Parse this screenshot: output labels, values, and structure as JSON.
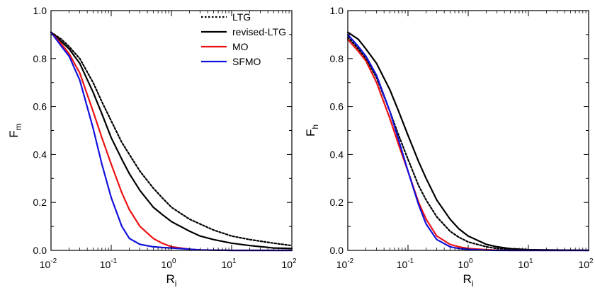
{
  "chart_data": [
    {
      "type": "line",
      "xscale": "log",
      "xlim": [
        0.01,
        100
      ],
      "ylim": [
        0,
        1
      ],
      "xticks": [
        0.01,
        0.1,
        1,
        10,
        100
      ],
      "xtick_labels": [
        [
          "10",
          "-2"
        ],
        [
          "10",
          "-1"
        ],
        [
          "10",
          "0"
        ],
        [
          "10",
          "1"
        ],
        [
          "10",
          "2"
        ]
      ],
      "yticks": [
        0,
        0.2,
        0.4,
        0.6,
        0.8,
        1.0
      ],
      "ytick_labels": [
        "0.0",
        "0.2",
        "0.4",
        "0.6",
        "0.8",
        "1.0"
      ],
      "xlabel": {
        "main": "R",
        "sub": "i"
      },
      "ylabel": {
        "main": "F",
        "sub": "m"
      },
      "legend": {
        "position": "top-right",
        "entries": [
          {
            "label": "LTG",
            "color": "#000000",
            "dash": "dotted"
          },
          {
            "label": "revised-LTG",
            "color": "#000000",
            "dash": "solid"
          },
          {
            "label": "MO",
            "color": "#ee1111",
            "dash": "solid"
          },
          {
            "label": "SFMO",
            "color": "#1111dd",
            "dash": "solid"
          }
        ]
      },
      "series": [
        {
          "name": "LTG",
          "color": "#000000",
          "dash": "dotted",
          "x": [
            0.01,
            0.015,
            0.02,
            0.03,
            0.05,
            0.07,
            0.1,
            0.15,
            0.2,
            0.3,
            0.5,
            0.7,
            1,
            2,
            3,
            5,
            10,
            20,
            50,
            100
          ],
          "y": [
            0.91,
            0.88,
            0.85,
            0.8,
            0.7,
            0.62,
            0.54,
            0.45,
            0.4,
            0.33,
            0.26,
            0.22,
            0.18,
            0.13,
            0.11,
            0.085,
            0.06,
            0.045,
            0.03,
            0.02
          ]
        },
        {
          "name": "revised-LTG",
          "color": "#000000",
          "dash": "solid",
          "x": [
            0.01,
            0.015,
            0.02,
            0.03,
            0.05,
            0.07,
            0.1,
            0.15,
            0.2,
            0.3,
            0.5,
            0.7,
            1,
            2,
            3,
            5,
            10,
            20,
            50,
            100
          ],
          "y": [
            0.91,
            0.87,
            0.84,
            0.78,
            0.66,
            0.57,
            0.47,
            0.38,
            0.32,
            0.25,
            0.18,
            0.15,
            0.12,
            0.08,
            0.06,
            0.045,
            0.03,
            0.02,
            0.01,
            0.008
          ]
        },
        {
          "name": "MO",
          "color": "#ee1111",
          "dash": "solid",
          "x": [
            0.01,
            0.015,
            0.02,
            0.03,
            0.05,
            0.07,
            0.1,
            0.15,
            0.2,
            0.3,
            0.5,
            0.7,
            1,
            2,
            3,
            5,
            10,
            100
          ],
          "y": [
            0.91,
            0.86,
            0.82,
            0.74,
            0.58,
            0.47,
            0.36,
            0.24,
            0.17,
            0.1,
            0.05,
            0.03,
            0.015,
            0.005,
            0.002,
            0.001,
            0.0,
            0.0
          ]
        },
        {
          "name": "SFMO",
          "color": "#1111dd",
          "dash": "solid",
          "x": [
            0.01,
            0.015,
            0.02,
            0.03,
            0.05,
            0.07,
            0.1,
            0.15,
            0.2,
            0.3,
            0.5,
            0.7,
            1,
            2,
            3,
            5,
            10,
            100
          ],
          "y": [
            0.91,
            0.85,
            0.81,
            0.71,
            0.51,
            0.36,
            0.22,
            0.1,
            0.05,
            0.025,
            0.015,
            0.012,
            0.01,
            0.005,
            0.002,
            0.001,
            0.0,
            0.0
          ]
        }
      ]
    },
    {
      "type": "line",
      "xscale": "log",
      "xlim": [
        0.01,
        100
      ],
      "ylim": [
        0,
        1
      ],
      "xticks": [
        0.01,
        0.1,
        1,
        10,
        100
      ],
      "xtick_labels": [
        [
          "10",
          "-2"
        ],
        [
          "10",
          "-1"
        ],
        [
          "10",
          "0"
        ],
        [
          "10",
          "1"
        ],
        [
          "10",
          "2"
        ]
      ],
      "yticks": [
        0,
        0.2,
        0.4,
        0.6,
        0.8,
        1.0
      ],
      "ytick_labels": [
        "0.0",
        "0.2",
        "0.4",
        "0.6",
        "0.8",
        "1.0"
      ],
      "xlabel": {
        "main": "R",
        "sub": "i"
      },
      "ylabel": {
        "main": "F",
        "sub": "h"
      },
      "series": [
        {
          "name": "LTG",
          "color": "#000000",
          "dash": "dotted",
          "x": [
            0.01,
            0.015,
            0.02,
            0.03,
            0.05,
            0.07,
            0.1,
            0.15,
            0.2,
            0.3,
            0.5,
            0.7,
            1,
            2,
            3,
            5,
            10,
            100
          ],
          "y": [
            0.89,
            0.84,
            0.8,
            0.72,
            0.58,
            0.48,
            0.38,
            0.27,
            0.21,
            0.14,
            0.08,
            0.055,
            0.035,
            0.015,
            0.008,
            0.004,
            0.002,
            0.0
          ]
        },
        {
          "name": "revised-LTG",
          "color": "#000000",
          "dash": "solid",
          "x": [
            0.01,
            0.015,
            0.02,
            0.03,
            0.05,
            0.07,
            0.1,
            0.15,
            0.2,
            0.3,
            0.5,
            0.7,
            1,
            2,
            3,
            5,
            10,
            100
          ],
          "y": [
            0.91,
            0.88,
            0.84,
            0.78,
            0.67,
            0.58,
            0.48,
            0.37,
            0.3,
            0.21,
            0.13,
            0.09,
            0.06,
            0.025,
            0.015,
            0.007,
            0.003,
            0.0
          ]
        },
        {
          "name": "MO",
          "color": "#ee1111",
          "dash": "solid",
          "x": [
            0.01,
            0.015,
            0.02,
            0.03,
            0.05,
            0.07,
            0.1,
            0.15,
            0.2,
            0.3,
            0.5,
            0.7,
            1,
            2,
            3,
            5,
            10,
            100
          ],
          "y": [
            0.88,
            0.83,
            0.79,
            0.7,
            0.55,
            0.44,
            0.33,
            0.2,
            0.13,
            0.06,
            0.025,
            0.015,
            0.008,
            0.003,
            0.001,
            0.0,
            0.0,
            0.0
          ]
        },
        {
          "name": "SFMO",
          "color": "#1111dd",
          "dash": "solid",
          "x": [
            0.01,
            0.015,
            0.02,
            0.03,
            0.05,
            0.07,
            0.1,
            0.15,
            0.2,
            0.3,
            0.5,
            0.7,
            1,
            2,
            3,
            5,
            10,
            100
          ],
          "y": [
            0.9,
            0.85,
            0.81,
            0.73,
            0.58,
            0.46,
            0.33,
            0.19,
            0.11,
            0.045,
            0.015,
            0.008,
            0.004,
            0.001,
            0.0,
            0.0,
            0.0,
            0.0
          ]
        }
      ]
    }
  ]
}
